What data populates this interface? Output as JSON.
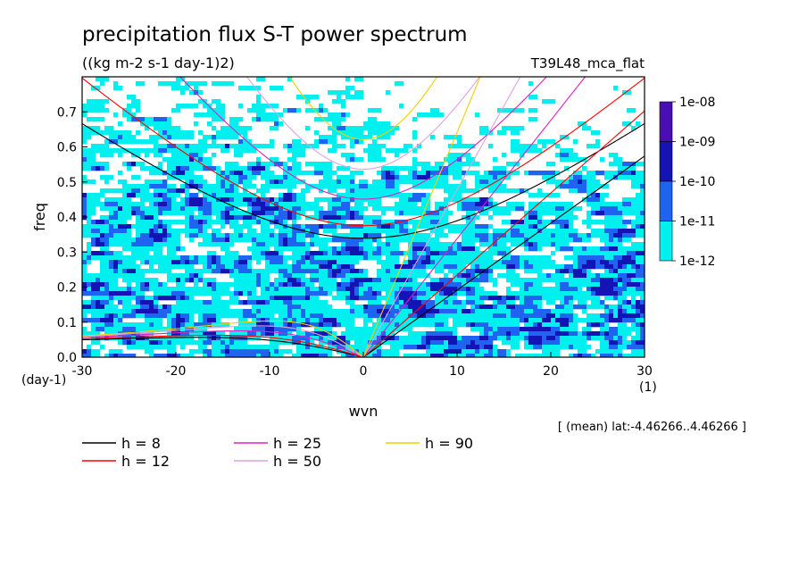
{
  "chart_data": {
    "type": "heatmap",
    "title": "precipitation flux S-T power spectrum",
    "subtitle": "((kg m-2 s-1 day-1)2)",
    "run_label": "T39L48_mca_flat",
    "xlabel": "wvn",
    "ylabel": "freq",
    "x_unit": "(1)",
    "y_unit": "(day-1)",
    "xlim": [
      -30,
      30
    ],
    "ylim": [
      0,
      0.8
    ],
    "x_ticks": [
      -30,
      -20,
      -10,
      0,
      10,
      20,
      30
    ],
    "x_tick_labels": [
      "-30",
      "-20",
      "-10",
      "0",
      "10",
      "20",
      "30"
    ],
    "y_ticks": [
      0,
      0.1,
      0.2,
      0.3,
      0.4,
      0.5,
      0.6,
      0.7
    ],
    "y_tick_labels": [
      "0.0",
      "0.1",
      "0.2",
      "0.3",
      "0.4",
      "0.5",
      "0.6",
      "0.7"
    ],
    "note": "[ (mean) lat:-4.46266..4.46266 ]",
    "colorbar": {
      "labels": [
        "1e-08",
        "1e-09",
        "1e-10",
        "1e-11",
        "1e-12"
      ],
      "colors": [
        "#4a0fb4",
        "#1414b4",
        "#1e64f0",
        "#00f0f0"
      ]
    },
    "shading_colors": {
      "level_1e-12": "#00f0f0",
      "level_1e-11": "#1e64f0",
      "level_1e-10": "#1414b4"
    },
    "series": [
      {
        "name": "h =  8",
        "h": 8,
        "color": "#000000"
      },
      {
        "name": "h = 12",
        "h": 12,
        "color": "#ff0000"
      },
      {
        "name": "h = 25",
        "h": 25,
        "color": "#e020c0"
      },
      {
        "name": "h = 50",
        "h": 50,
        "color": "#e0a0e0"
      },
      {
        "name": "h = 90",
        "h": 90,
        "color": "#f0d000"
      }
    ]
  }
}
